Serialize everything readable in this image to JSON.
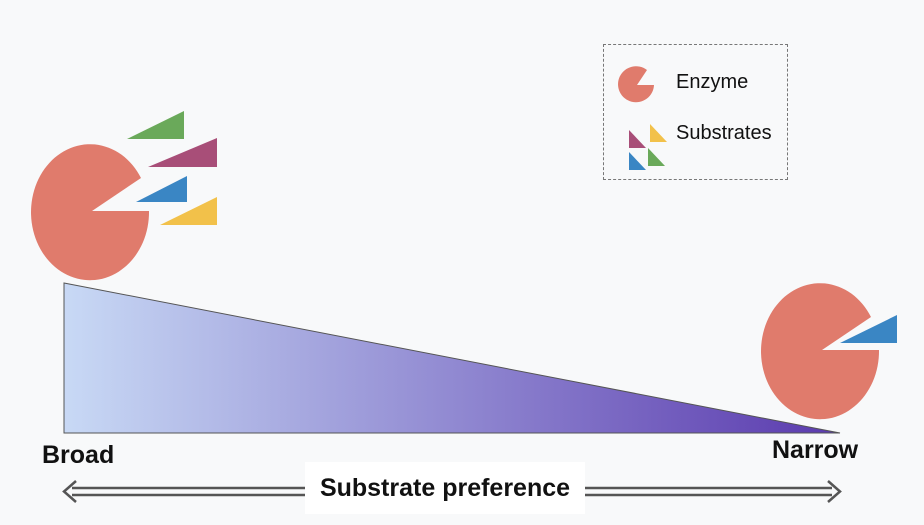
{
  "axis": {
    "left_label": "Broad",
    "right_label": "Narrow",
    "title": "Substrate preference"
  },
  "legend": {
    "enzyme_label": "Enzyme",
    "substrates_label": "Substrates"
  },
  "colors": {
    "background": "#f8f9fa",
    "enzyme": "#e07b6c",
    "substrate_green": "#6aa95a",
    "substrate_purple": "#a84e78",
    "substrate_blue": "#3a86c4",
    "substrate_yellow": "#f2c14a",
    "gradient_start": "#c8d9f5",
    "gradient_end": "#5a3aae",
    "arrow": "#555555"
  }
}
